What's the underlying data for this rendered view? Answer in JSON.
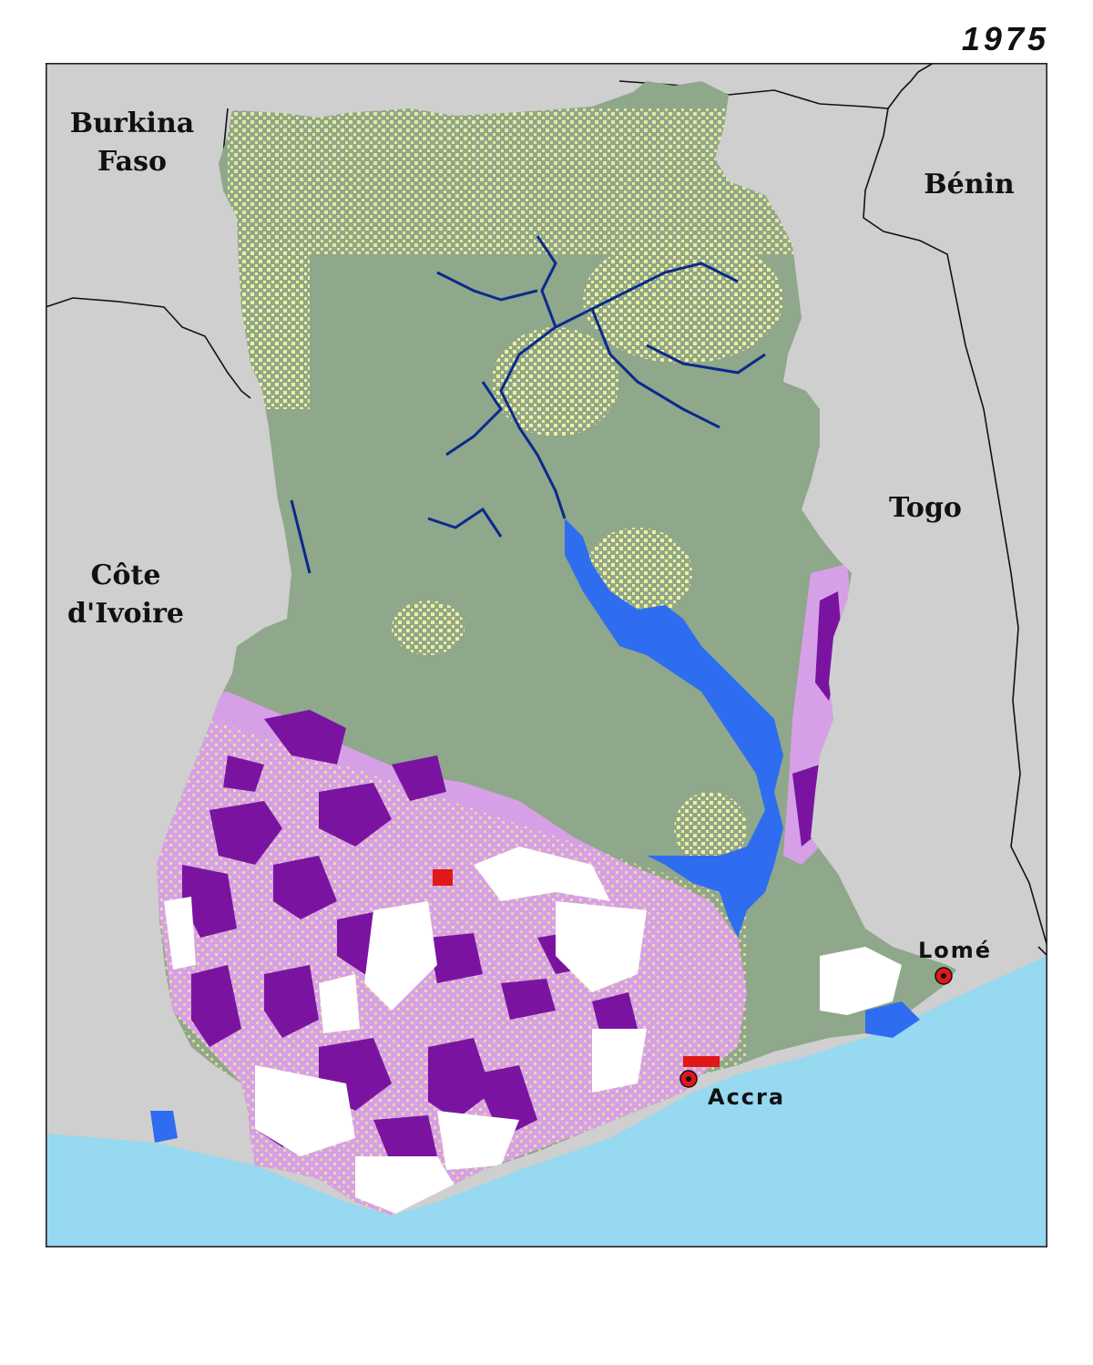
{
  "year": "1975",
  "countries": {
    "burkina": [
      "Burkina",
      "Faso"
    ],
    "cote": [
      "Côte",
      "d'Ivoire"
    ],
    "togo": "Togo",
    "benin": "Bénin"
  },
  "cities": {
    "accra": "Accra",
    "lome": "Lomé"
  },
  "colors": {
    "neighbor": "#cfcfcf",
    "ocean": "#96d9f1",
    "savanna": "#8fa78a",
    "yellow": "#f2ef9b",
    "lavender": "#d6a0e6",
    "purple": "#7a14a0",
    "lake": "#2e6df0",
    "river": "#0b2a8c",
    "urban": "#e01818",
    "unclassified": "#ffffff"
  }
}
